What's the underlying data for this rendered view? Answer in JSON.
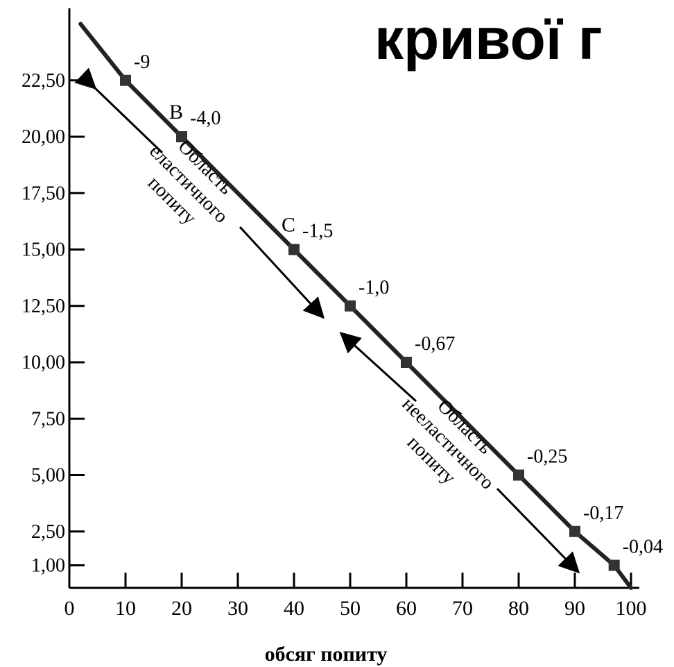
{
  "header": {
    "title": "кривої г"
  },
  "chart_data": {
    "type": "line",
    "title": "кривої г",
    "xlabel": "обсяг попиту",
    "ylabel": "",
    "xlim": [
      0,
      100
    ],
    "x_ticks": [
      0,
      10,
      20,
      30,
      40,
      50,
      60,
      70,
      80,
      90,
      100
    ],
    "y_ticks": [
      "1,00",
      "2,50",
      "5,00",
      "7,50",
      "10,00",
      "12,50",
      "15,00",
      "17,50",
      "20,00",
      "22,50"
    ],
    "series": [
      {
        "x": [
          2,
          10,
          20,
          40,
          50,
          60,
          80,
          90,
          97,
          100
        ],
        "y": [
          25,
          22.5,
          20,
          15,
          12.5,
          10,
          5,
          2.5,
          1,
          0
        ]
      }
    ],
    "points": [
      {
        "x": 10,
        "y": 22.5,
        "elasticity": "-9",
        "letter": ""
      },
      {
        "x": 20,
        "y": 20,
        "elasticity": "-4,0",
        "letter": "B"
      },
      {
        "x": 40,
        "y": 15,
        "elasticity": "-1,5",
        "letter": "C"
      },
      {
        "x": 50,
        "y": 12.5,
        "elasticity": "-1,0",
        "letter": ""
      },
      {
        "x": 60,
        "y": 10,
        "elasticity": "-0,67",
        "letter": ""
      },
      {
        "x": 80,
        "y": 5,
        "elasticity": "-0,25",
        "letter": ""
      },
      {
        "x": 90,
        "y": 2.5,
        "elasticity": "-0,17",
        "letter": ""
      },
      {
        "x": 97,
        "y": 1,
        "elasticity": "-0,04",
        "letter": ""
      }
    ],
    "annotations": {
      "elastic": [
        "Область",
        "еластичного",
        "попиту"
      ],
      "inelastic": [
        "Область",
        "нееластичного",
        "попиту"
      ]
    },
    "grid": false,
    "legend": "none"
  }
}
